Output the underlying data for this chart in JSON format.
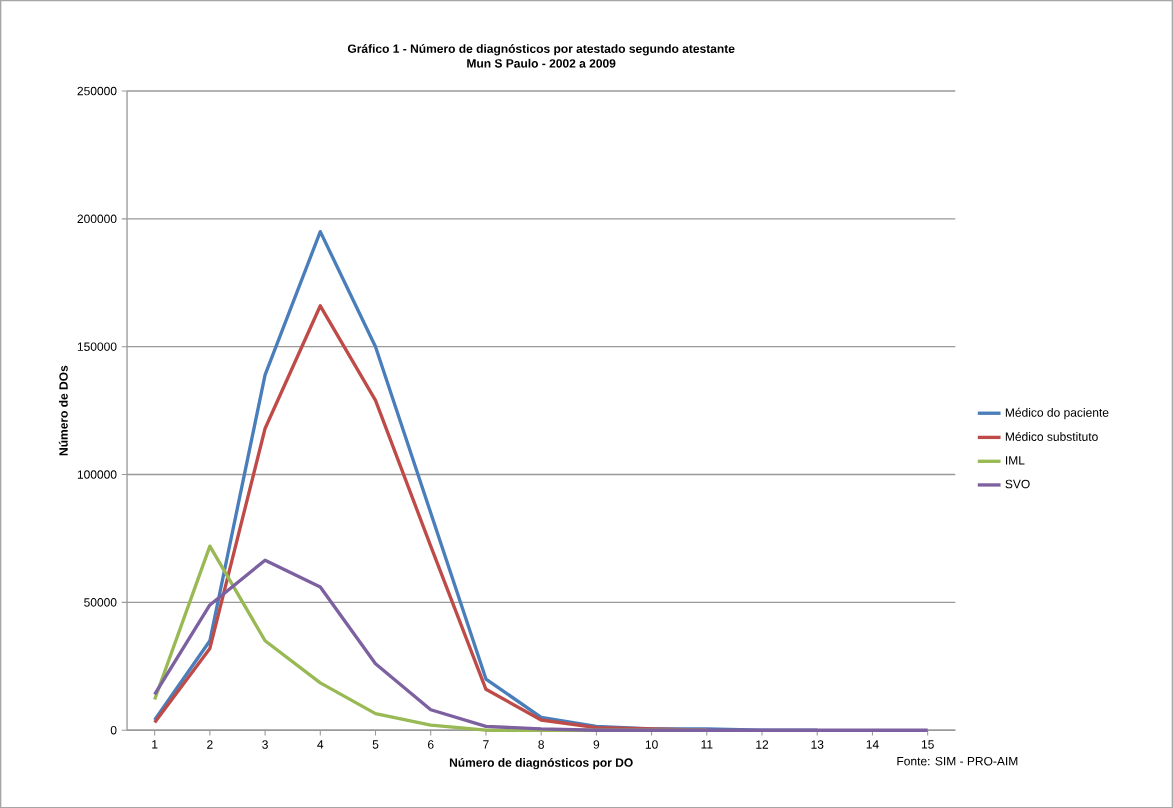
{
  "chart_data": {
    "type": "line",
    "title": "Gráfico  1 - Número de diagnósticos  por atestado segundo atestante",
    "subtitle": "Mun S Paulo  - 2002 a 2009",
    "xlabel": "Número de diagnósticos  por DO",
    "ylabel": "Número de DOs",
    "categories": [
      "1",
      "2",
      "3",
      "4",
      "5",
      "6",
      "7",
      "8",
      "9",
      "10",
      "11",
      "12",
      "13",
      "14",
      "15"
    ],
    "series": [
      {
        "name": "Médico do paciente",
        "color": "#4a7ebb",
        "values": [
          4000,
          35000,
          139000,
          195000,
          150000,
          85000,
          20000,
          5000,
          1500,
          500,
          500,
          0,
          0,
          null,
          null
        ]
      },
      {
        "name": "Médico substituto",
        "color": "#be4b48",
        "values": [
          3000,
          32000,
          118000,
          166000,
          129000,
          72000,
          16000,
          4000,
          1000,
          500,
          0,
          null,
          null,
          null,
          null
        ]
      },
      {
        "name": "IML",
        "color": "#98b954",
        "values": [
          12000,
          72000,
          35000,
          18500,
          6500,
          2000,
          0,
          0,
          0,
          0,
          0,
          null,
          null,
          null,
          null
        ]
      },
      {
        "name": "SVO",
        "color": "#7d60a0",
        "values": [
          14000,
          49000,
          66500,
          56000,
          26000,
          8000,
          1500,
          500,
          0,
          0,
          0,
          0,
          0,
          0,
          0
        ]
      }
    ],
    "ylim": [
      0,
      250000
    ],
    "yticks": [
      0,
      50000,
      100000,
      150000,
      200000,
      250000
    ],
    "grid": "y",
    "legend": "right",
    "marker": "none",
    "line_style": "solid",
    "annotations": [
      "Fonte: SIM - PRO-AIM"
    ]
  }
}
